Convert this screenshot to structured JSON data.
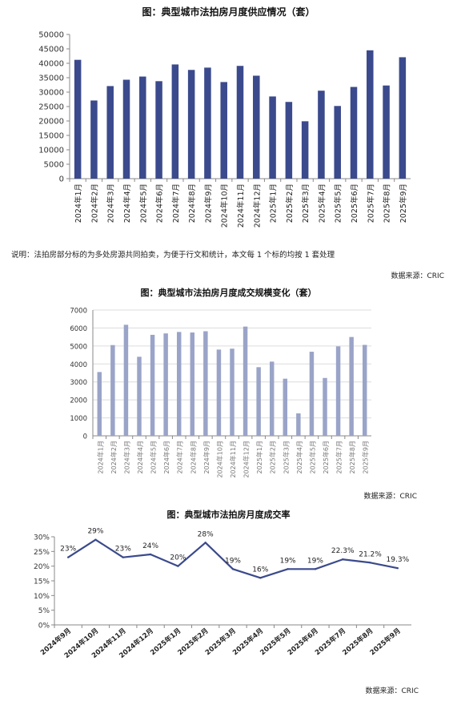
{
  "note": "说明：法拍房部分标的为多处房源共同拍卖，为便于行文和统计，本文每 1 个标的均按 1 套处理",
  "source_label": "数据来源：CRIC",
  "chart_data": [
    {
      "type": "bar",
      "title": "图：典型城市法拍房月度供应情况（套）",
      "categories": [
        "2024年1月",
        "2024年2月",
        "2024年3月",
        "2024年4月",
        "2024年5月",
        "2024年6月",
        "2024年7月",
        "2024年8月",
        "2024年9月",
        "2024年10月",
        "2024年11月",
        "2024年12月",
        "2025年1月",
        "2025年2月",
        "2025年3月",
        "2025年4月",
        "2025年5月",
        "2025年6月",
        "2025年7月",
        "2025年8月",
        "2025年9月"
      ],
      "values": [
        41200,
        27100,
        32100,
        34300,
        35400,
        33800,
        39600,
        37700,
        38500,
        33500,
        39100,
        35700,
        28500,
        26600,
        19900,
        30500,
        25200,
        31800,
        44500,
        32300,
        42100
      ],
      "ylim": [
        0,
        50000
      ],
      "yticks": [
        0,
        5000,
        10000,
        15000,
        20000,
        25000,
        30000,
        35000,
        40000,
        45000,
        50000
      ],
      "color": "#3b4a8c",
      "grid": false
    },
    {
      "type": "bar",
      "title": "图：典型城市法拍房月度成交规模变化（套）",
      "categories": [
        "2024年1月",
        "2024年2月",
        "2024年3月",
        "2024年4月",
        "2024年5月",
        "2024年6月",
        "2024年7月",
        "2024年8月",
        "2024年9月",
        "2024年10月",
        "2024年11月",
        "2024年12月",
        "2025年1月",
        "2025年2月",
        "2025年3月",
        "2025年4月",
        "2025年5月",
        "2025年6月",
        "2025年7月",
        "2025年8月",
        "2025年9月"
      ],
      "values": [
        3550,
        5050,
        6180,
        4400,
        5620,
        5700,
        5780,
        5750,
        5820,
        4800,
        4850,
        6080,
        3820,
        4130,
        3180,
        1250,
        4680,
        3220,
        4980,
        5500,
        5060
      ],
      "ylim": [
        0,
        7000
      ],
      "yticks": [
        0,
        1000,
        2000,
        3000,
        4000,
        5000,
        6000,
        7000
      ],
      "color": "#9aa4c8",
      "grid": true
    },
    {
      "type": "line",
      "title": "图：典型城市法拍房月度成交率",
      "categories": [
        "2024年9月",
        "2024年10月",
        "2024年11月",
        "2024年12月",
        "2025年1月",
        "2025年2月",
        "2025年3月",
        "2025年4月",
        "2025年5月",
        "2025年6月",
        "2025年7月",
        "2025年8月",
        "2025年9月"
      ],
      "values": [
        23,
        29,
        23,
        24,
        20,
        28,
        19,
        16,
        19,
        19,
        22.3,
        21.2,
        19.3
      ],
      "data_labels": [
        "23%",
        "29%",
        "23%",
        "24%",
        "20%",
        "28%",
        "19%",
        "16%",
        "19%",
        "19%",
        "22.3%",
        "21.2%",
        "19.3%"
      ],
      "ylim": [
        0,
        30
      ],
      "yticks": [
        "0%",
        "5%",
        "10%",
        "15%",
        "20%",
        "25%",
        "30%"
      ],
      "color": "#3b4a8c",
      "grid": false
    }
  ]
}
